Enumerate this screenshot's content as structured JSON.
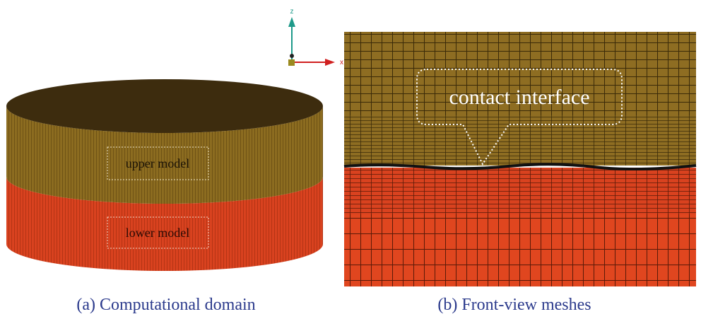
{
  "figure": {
    "axes": {
      "z": "z",
      "x": "x"
    },
    "panel_a": {
      "upper_label": "upper model",
      "lower_label": "lower model",
      "caption": "(a) Computational domain"
    },
    "panel_b": {
      "callout": "contact interface",
      "caption": "(b) Front-view meshes"
    }
  }
}
